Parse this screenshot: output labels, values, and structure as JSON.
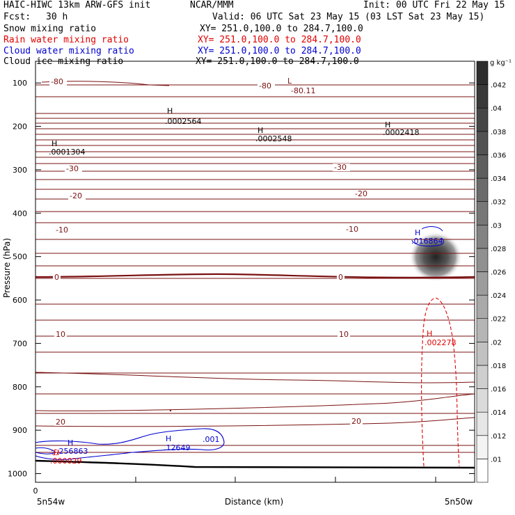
{
  "header": {
    "left_title": "HAIC-HIWC 13km ARW-GFS init",
    "agency": "NCAR/MMM",
    "init": "Init: 00 UTC Fri 22 May 15",
    "fcst_label": "Fcst:",
    "fcst_value": "30 h",
    "valid": "Valid: 06 UTC Sat 23 May 15 (03 LST Sat 23 May 15)"
  },
  "fields": [
    {
      "name": "Snow mixing ratio",
      "xy": "XY= 251.0,100.0 to 284.7,100.0",
      "color": "#000000"
    },
    {
      "name": "Rain water mixing ratio",
      "xy": "XY= 251.0,100.0 to 284.7,100.0",
      "color": "#e00000"
    },
    {
      "name": "Cloud water mixing ratio",
      "xy": "XY= 251.0,100.0 to 284.7,100.0",
      "color": "#0000d0"
    },
    {
      "name": "Cloud ice mixing ratio",
      "xy": "XY= 251.0,100.0 to 284.7,100.0",
      "color": "#000000"
    }
  ],
  "chart_data": {
    "type": "heatmap",
    "ylabel": "Pressure (hPa)",
    "xlabel": "Distance (km)",
    "ylim": [
      1020,
      50
    ],
    "y_ticks": [
      100,
      200,
      300,
      400,
      500,
      600,
      700,
      800,
      900,
      1000
    ],
    "x_tick_zero": "0",
    "x_left_label": "5n54w",
    "x_right_label": "5n50w",
    "colorbar": {
      "unit": "g kg⁻¹",
      "ticks": [
        ".01",
        ".012",
        ".014",
        ".016",
        ".018",
        ".02",
        ".022",
        ".024",
        ".026",
        ".028",
        ".03",
        ".032",
        ".034",
        ".036",
        ".038",
        ".04",
        ".042"
      ]
    },
    "temperature_labels": [
      "-80",
      "-80",
      "-30",
      "-30",
      "-20",
      "-20",
      "-10",
      "-10",
      "0",
      "0",
      "10",
      "10",
      "20",
      "20"
    ],
    "extrema": [
      {
        "label": "H",
        "value": ".0002564"
      },
      {
        "label": "H",
        "value": ".0002548"
      },
      {
        "label": "H",
        "value": ".0002418"
      },
      {
        "label": "H",
        "value": ".0001304"
      },
      {
        "label": "L",
        "value": "-80.11"
      },
      {
        "label": "H",
        "value": ".016864"
      },
      {
        "label": "H",
        "value": ".002278"
      },
      {
        "label": "H",
        "value": ".256863"
      },
      {
        "label": "H",
        "value": ".12649"
      },
      {
        "label": "H",
        "value": ".000029"
      }
    ],
    "cloud_water_contour_label": ".001",
    "colors": {
      "temperature": "#7a1010",
      "rain": "#e00000",
      "cloud_water": "#0000d0",
      "terrain": "#000000"
    }
  }
}
